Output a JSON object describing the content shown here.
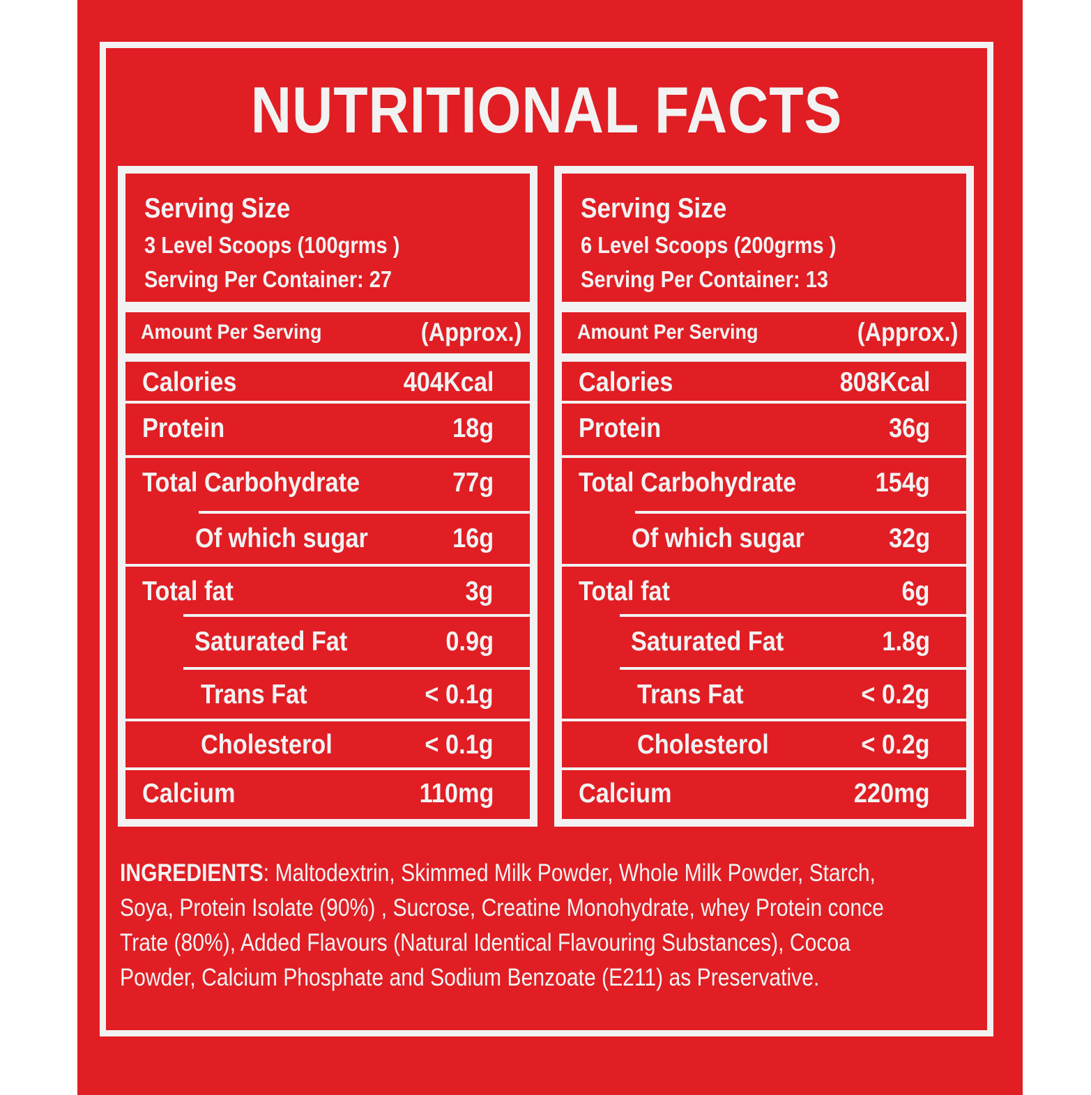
{
  "title": "NUTRITIONAL FACTS",
  "columns": [
    {
      "serving_title": "Serving Size",
      "serving_line1": "3 Level Scoops (100grms )",
      "serving_line2": "Serving Per Container: 27",
      "amount_label": "Amount Per Serving",
      "approx_label": "(Approx.)",
      "rows": [
        {
          "label": "Calories",
          "value": "404Kcal"
        },
        {
          "label": "Protein",
          "value": "18g"
        },
        {
          "label": "Total Carbohydrate",
          "value": "77g"
        },
        {
          "label": "Of which sugar",
          "value": "16g"
        },
        {
          "label": "Total fat",
          "value": "3g"
        },
        {
          "label": "Saturated Fat",
          "value": "0.9g"
        },
        {
          "label": "Trans Fat",
          "value": "< 0.1g"
        },
        {
          "label": "Cholesterol",
          "value": "< 0.1g"
        },
        {
          "label": "Calcium",
          "value": "110mg"
        }
      ]
    },
    {
      "serving_title": "Serving Size",
      "serving_line1": "6 Level Scoops (200grms )",
      "serving_line2": "Serving Per Container: 13",
      "amount_label": "Amount Per Serving",
      "approx_label": "(Approx.)",
      "rows": [
        {
          "label": "Calories",
          "value": "808Kcal"
        },
        {
          "label": "Protein",
          "value": "36g"
        },
        {
          "label": "Total Carbohydrate",
          "value": "154g"
        },
        {
          "label": "Of which sugar",
          "value": "32g"
        },
        {
          "label": "Total fat",
          "value": "6g"
        },
        {
          "label": "Saturated Fat",
          "value": "1.8g"
        },
        {
          "label": "Trans Fat",
          "value": "< 0.2g"
        },
        {
          "label": "Cholesterol",
          "value": "< 0.2g"
        },
        {
          "label": "Calcium",
          "value": "220mg"
        }
      ]
    }
  ],
  "ingredients": {
    "heading": "INGREDIENTS",
    "line1": ": Maltodextrin, Skimmed Milk Powder, Whole Milk Powder, Starch,",
    "line2": "Soya, Protein Isolate (90%) , Sucrose, Creatine Monohydrate, whey Protein conce",
    "line3": "Trate (80%), Added Flavours (Natural Identical Flavouring Substances), Cocoa",
    "line4": "Powder, Calcium Phosphate and Sodium Benzoate (E211) as Preservative."
  }
}
